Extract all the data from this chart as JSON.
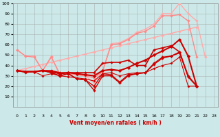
{
  "xlabel": "Vent moyen/en rafales ( km/h )",
  "xlim": [
    -0.5,
    23.5
  ],
  "ylim": [
    0,
    100
  ],
  "yticks": [
    10,
    20,
    30,
    40,
    50,
    60,
    70,
    80,
    90,
    100
  ],
  "xticks": [
    0,
    1,
    2,
    3,
    4,
    5,
    6,
    7,
    8,
    9,
    10,
    11,
    12,
    13,
    14,
    15,
    16,
    17,
    18,
    19,
    20,
    21,
    22,
    23
  ],
  "bg_color": "#cce8e8",
  "grid_color": "#999999",
  "series": [
    {
      "x": [
        0,
        1,
        2,
        3,
        4,
        5,
        6,
        7,
        8,
        9,
        10,
        11,
        12,
        13,
        14,
        15,
        16,
        17,
        18,
        19,
        20,
        21
      ],
      "y": [
        35,
        37,
        39,
        41,
        43,
        45,
        47,
        49,
        51,
        53,
        55,
        57,
        59,
        61,
        63,
        65,
        67,
        69,
        71,
        73,
        75,
        77
      ],
      "color": "#ffaaaa",
      "lw": 1.0,
      "marker": "D",
      "ms": 2.0
    },
    {
      "x": [
        0,
        1,
        2,
        3,
        4,
        5,
        6,
        7,
        8,
        9,
        10,
        11,
        12,
        13,
        14,
        15,
        16,
        17,
        18,
        19,
        20,
        21,
        22,
        23
      ],
      "y": [
        55,
        49,
        49,
        35,
        49,
        30,
        32,
        31,
        30,
        23,
        35,
        61,
        62,
        66,
        72,
        75,
        80,
        90,
        90,
        100,
        90,
        83,
        48,
        null
      ],
      "color": "#ffaaaa",
      "lw": 1.0,
      "marker": "D",
      "ms": 2.0
    },
    {
      "x": [
        0,
        1,
        2,
        3,
        4,
        5,
        6,
        7,
        8,
        9,
        10,
        11,
        12,
        13,
        14,
        15,
        16,
        17,
        18,
        19,
        20,
        21,
        22,
        23
      ],
      "y": [
        55,
        49,
        48,
        35,
        48,
        32,
        32,
        31,
        30,
        28,
        34,
        60,
        61,
        65,
        71,
        73,
        78,
        88,
        88,
        89,
        83,
        48,
        null,
        null
      ],
      "color": "#ff8888",
      "lw": 1.0,
      "marker": "D",
      "ms": 2.0
    },
    {
      "x": [
        0,
        1,
        2,
        3,
        4,
        5,
        6,
        7,
        8,
        9,
        10,
        11,
        12,
        13,
        14,
        15,
        16,
        17,
        18,
        19,
        20,
        21,
        22,
        23
      ],
      "y": [
        35,
        34,
        34,
        35,
        34,
        32,
        33,
        32,
        31,
        30,
        35,
        36,
        35,
        38,
        42,
        45,
        50,
        54,
        58,
        65,
        49,
        20,
        null,
        null
      ],
      "color": "#cc0000",
      "lw": 1.5,
      "marker": "D",
      "ms": 2.5
    },
    {
      "x": [
        0,
        1,
        2,
        3,
        4,
        5,
        6,
        7,
        8,
        9,
        10,
        11,
        12,
        13,
        14,
        15,
        16,
        17,
        18,
        19,
        20,
        21,
        22,
        23
      ],
      "y": [
        35,
        34,
        34,
        35,
        35,
        33,
        33,
        33,
        33,
        33,
        42,
        43,
        43,
        45,
        40,
        40,
        55,
        57,
        59,
        53,
        30,
        20,
        null,
        null
      ],
      "color": "#cc0000",
      "lw": 1.2,
      "marker": "D",
      "ms": 2.0
    },
    {
      "x": [
        0,
        1,
        2,
        3,
        4,
        5,
        6,
        7,
        8,
        9,
        10,
        11,
        12,
        13,
        14,
        15,
        16,
        17,
        18,
        19,
        20,
        21,
        22,
        23
      ],
      "y": [
        35,
        34,
        34,
        35,
        33,
        30,
        32,
        27,
        26,
        20,
        32,
        31,
        24,
        31,
        32,
        33,
        42,
        48,
        49,
        53,
        29,
        20,
        null,
        null
      ],
      "color": "#cc0000",
      "lw": 1.0,
      "marker": "D",
      "ms": 2.0
    },
    {
      "x": [
        0,
        1,
        2,
        3,
        4,
        5,
        6,
        7,
        8,
        9,
        10,
        11,
        12,
        13,
        14,
        15,
        16,
        17,
        18,
        19,
        20,
        21,
        22,
        23
      ],
      "y": [
        35,
        34,
        34,
        35,
        33,
        30,
        32,
        27,
        26,
        16,
        30,
        30,
        23,
        30,
        32,
        33,
        41,
        47,
        49,
        52,
        29,
        20,
        null,
        null
      ],
      "color": "#cc0000",
      "lw": 1.0,
      "marker": "D",
      "ms": 2.0
    },
    {
      "x": [
        0,
        1,
        2,
        3,
        4,
        5,
        6,
        7,
        8,
        9,
        10,
        11,
        12,
        13,
        14,
        15,
        16,
        17,
        18,
        19,
        20,
        21,
        22,
        23
      ],
      "y": [
        35,
        33,
        34,
        30,
        32,
        30,
        29,
        28,
        27,
        25,
        32,
        33,
        30,
        32,
        33,
        33,
        37,
        40,
        42,
        48,
        20,
        20,
        null,
        null
      ],
      "color": "#cc0000",
      "lw": 0.8,
      "marker": "D",
      "ms": 1.8
    }
  ]
}
